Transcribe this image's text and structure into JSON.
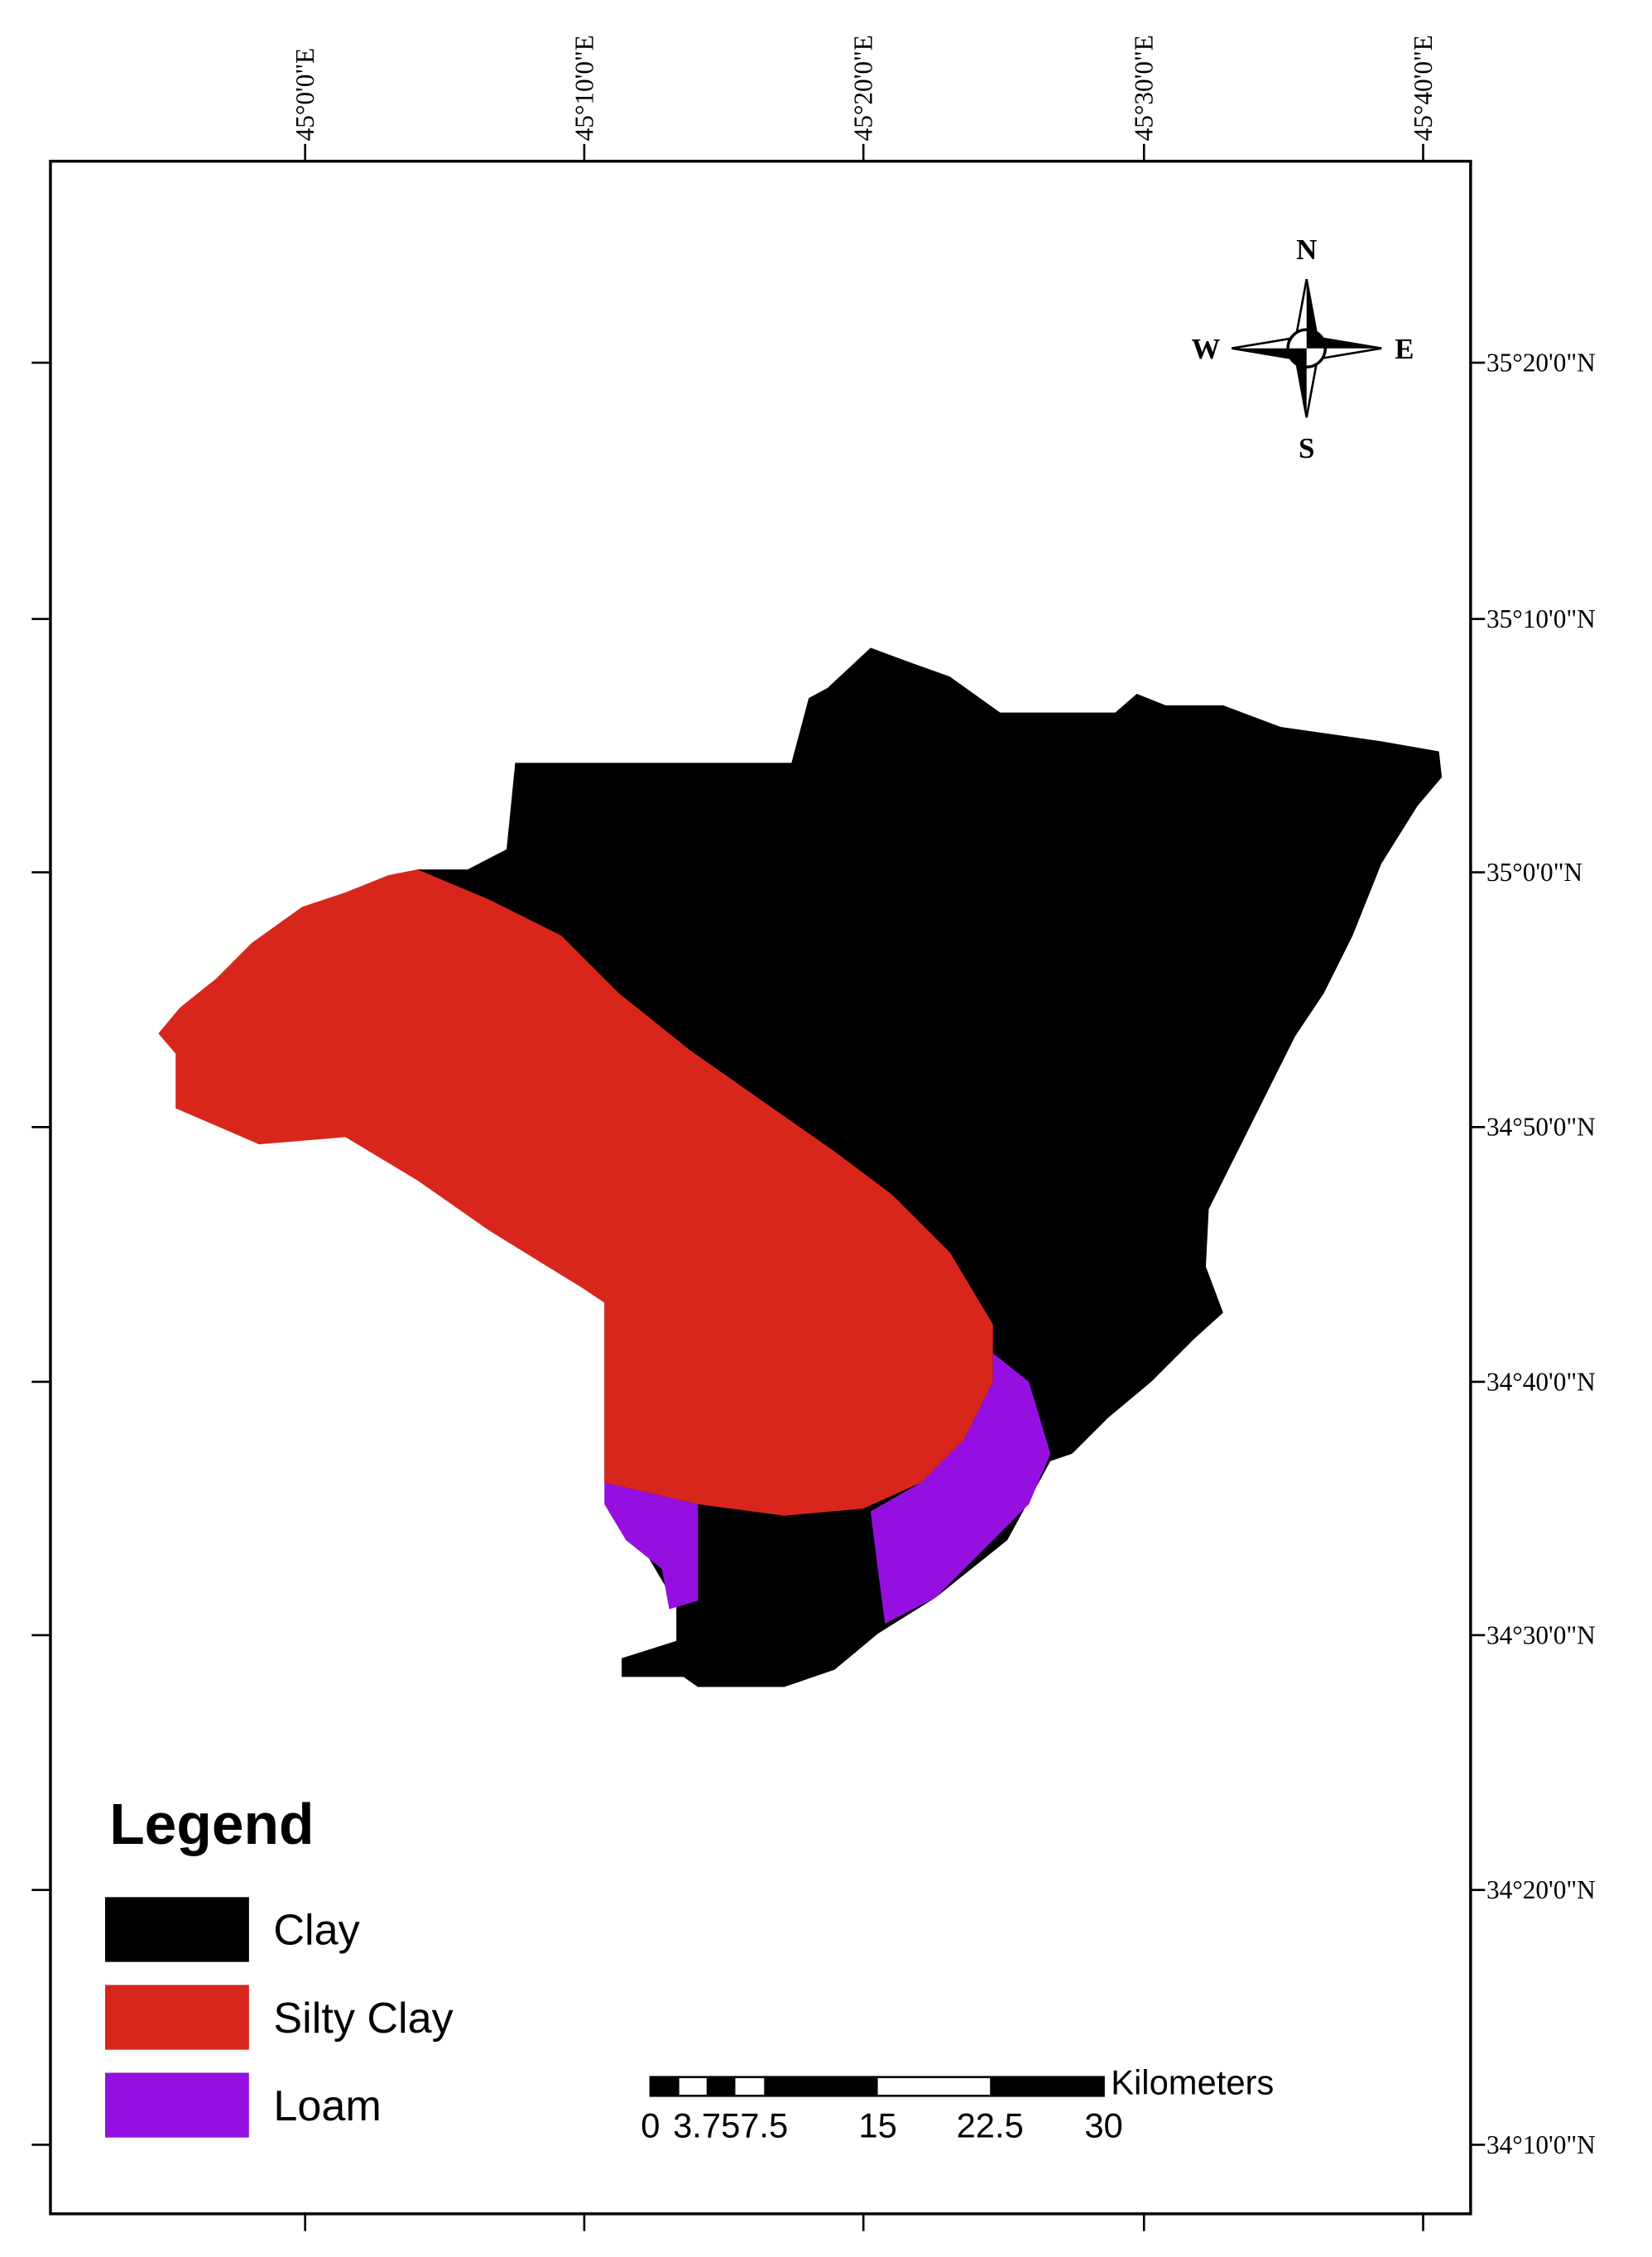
{
  "map": {
    "lon_labels": [
      "45°0'0\"E",
      "45°10'0\"E",
      "45°20'0\"E",
      "45°30'0\"E",
      "45°40'0\"E"
    ],
    "lat_labels": [
      "35°20'0\"N",
      "35°10'0\"N",
      "35°0'0\"N",
      "34°50'0\"N",
      "34°40'0\"N",
      "34°30'0\"N",
      "34°20'0\"N",
      "34°10'0\"N"
    ],
    "compass": {
      "n": "N",
      "e": "E",
      "s": "S",
      "w": "W"
    },
    "legend": {
      "title": "Legend",
      "items": [
        {
          "label": "Clay",
          "color": "#000000"
        },
        {
          "label": "Silty Clay",
          "color": "#d9261c"
        },
        {
          "label": "Loam",
          "color": "#9510e0"
        }
      ]
    },
    "scale_bar": {
      "labels": [
        "0",
        "3.75",
        "7.5",
        "15",
        "22.5",
        "30"
      ],
      "unit": "Kilometers"
    }
  }
}
